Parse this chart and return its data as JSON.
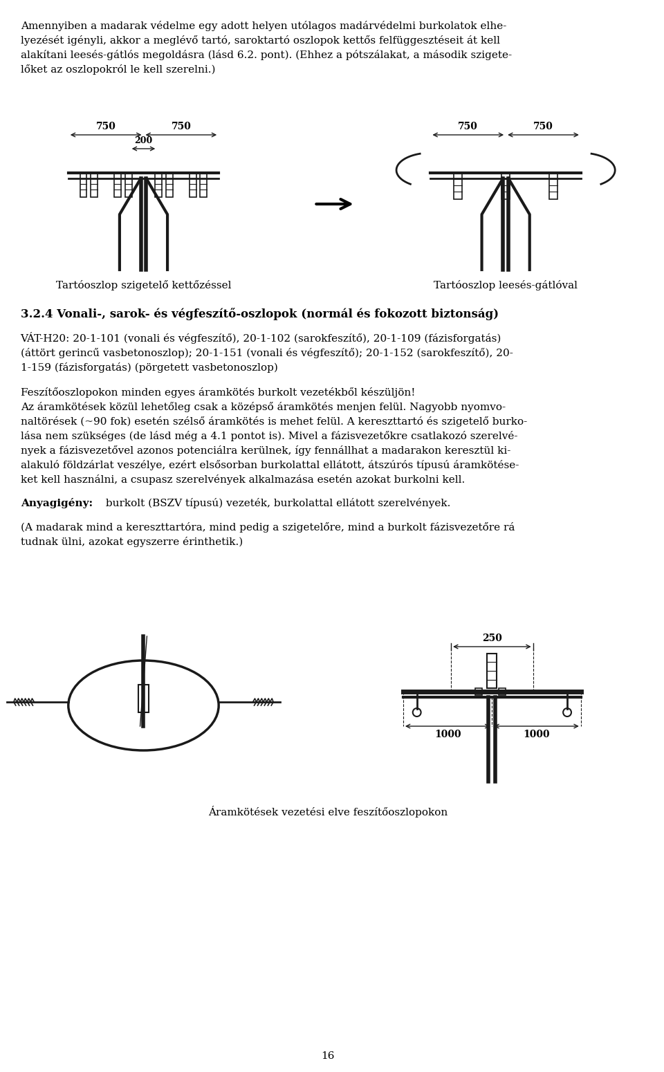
{
  "background_color": "#ffffff",
  "page_number": "16",
  "paragraph1": "Amennyiben a madarak védelme egy adott helyen utólagos madárvédelmi burkolatok elhe-\nlyezését igényli, akkor a meglévő tartó, saroktartó oszlopok kettős felfüggesztéseit át kell\nalakítani leesés-gátlós megoldásra (lásd 6.2. pont). (Ehhez a pótszálakat, a második szigete-\nlőket az oszlopokról le kell szerelni.)",
  "caption_left": "Tartóoszlop szigetelő kettőzéssel",
  "caption_right": "Tartóoszlop leesés-gátlóval",
  "section_title": "3.2.4 Vonali-, sarok- és végfeszítő-oszlopok (normál és fokozott biztonság)",
  "section_body": "VÁT-H20: 20-1-101 (vonali és végfeszítő), 20-1-102 (sarokfeszítő), 20-1-109 (fázisforgatás)\n(áttört gerincű vasbetonoszlop); 20-1-151 (vonali és végfeszítő); 20-1-152 (sarokfeszítő), 20-\n1-159 (fázisforgatás) (pörgetett vasbetonoszlop)",
  "para2": "Feszítőoszlopokon minden egyes áramkötés burkolt vezetékből készüljön!\nAz áramkötések közül lehetőleg csak a középső áramkötés menjen felül. Nagyobb nyomvo-\nnaltörések (~90 fok) esetén szélső áramkötés is mehet felül. A kereszttartó és szigetelő burko-\nlása nem szükséges (de lásd még a 4.1 pontot is). Mivel a fázisvezetőkre csatlakozó szerelvé-\nnyek a fázisvezetővel azonos potenciálra kerülnek, így fennállhat a madarakon keresztül ki-\nalakuló földzárlat veszélye, ezért elsősorban burkolattal ellátott, átszúrós típusú áramkötése-\nket kell használni, a csupasz szerelvények alkalmazása esetén azokat burkolni kell.",
  "anyagigeny": "Anyagigény: burkolt (BSZV típusú) vezeték, burkolattal ellátott szerelvények.",
  "para3": "(A madarak mind a kereszttartóra, mind pedig a szigetelőre, mind a burkolt fázisvezetőre rá\ntudnak ülni, azokat egyszerre érinthetik.)",
  "caption_bottom": "Áramkötések vezetési elve feszítőoszlopokon"
}
